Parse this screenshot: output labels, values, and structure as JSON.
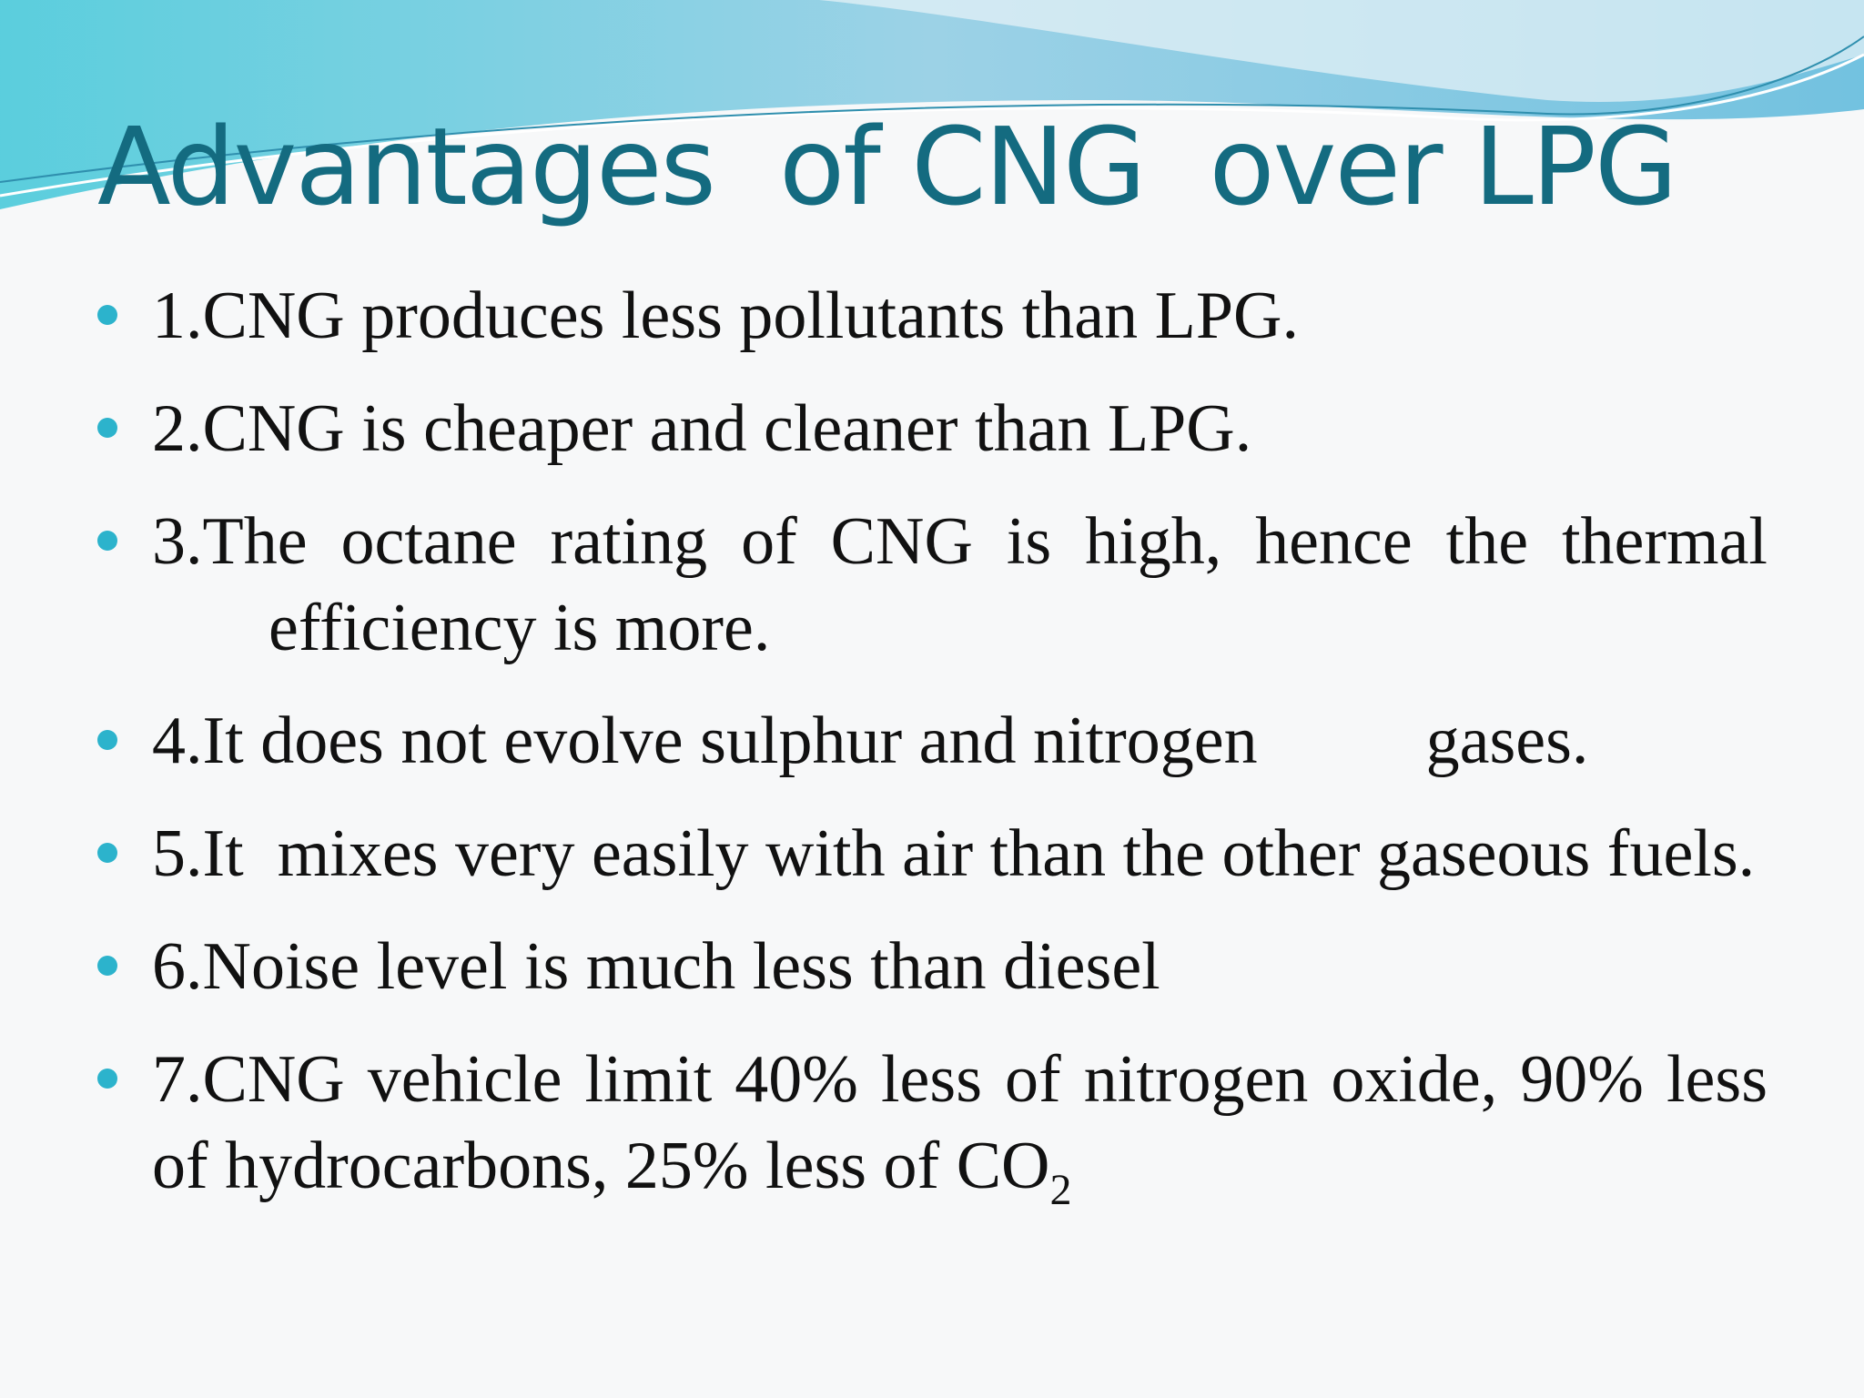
{
  "title": "Advantages  of CNG  over LPG",
  "bullets": [
    {
      "text": "1.CNG produces less pollutants than LPG."
    },
    {
      "text": "2.CNG is cheaper and cleaner than LPG."
    },
    {
      "text": "3.The octane rating of CNG is high, hence the  thermal efficiency is more."
    },
    {
      "text": "4.It does not evolve sulphur and nitrogen          gases."
    },
    {
      "text": "5.It  mixes very easily with air than the other gaseous fuels."
    },
    {
      "text": "6.Noise level is much less than diesel"
    },
    {
      "text": "7.CNG vehicle limit 40% less of nitrogen oxide, 90% less of hydrocarbons, 25% less of CO",
      "subscript": "2"
    }
  ]
}
